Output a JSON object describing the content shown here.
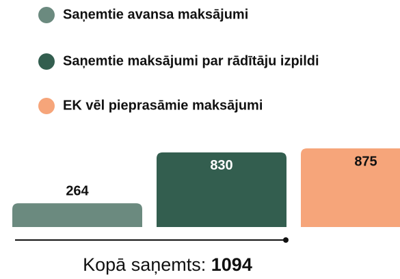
{
  "chart_data": {
    "type": "bar",
    "categories": [
      "Saņemtie avansa maksājumi",
      "Saņemtie maksājumi par rādītāju izpildi",
      "EK vēl pieprasāmie maksājumi"
    ],
    "values": [
      264,
      830,
      875
    ],
    "colors": [
      "#6b8a7f",
      "#335e4f",
      "#f6a57a"
    ],
    "total_label": "Kopā saņemts:",
    "total": 1094
  }
}
